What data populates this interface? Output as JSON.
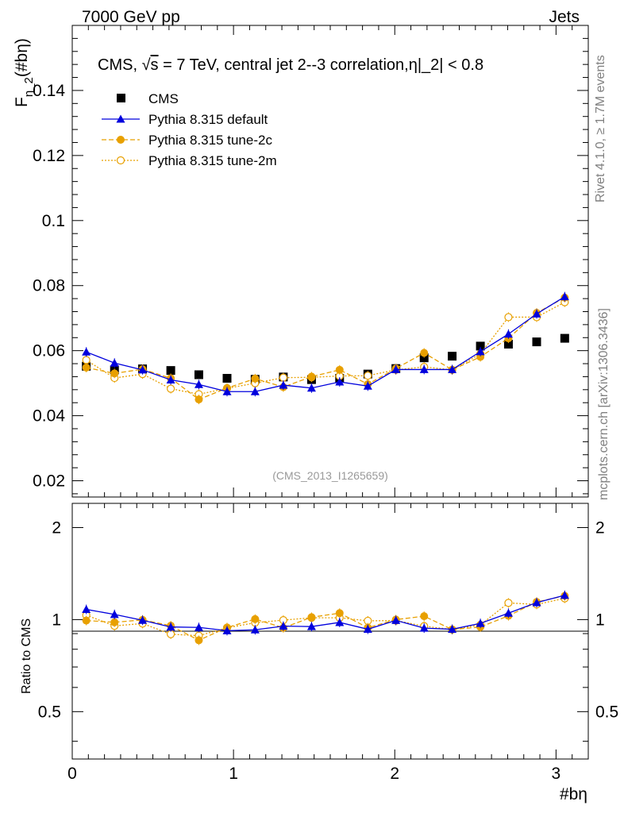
{
  "header": {
    "energy_label": "7000 GeV pp",
    "process_label": "Jets"
  },
  "side_labels": {
    "rivet": "Rivet 4.1.0, ≥ 1.7M events",
    "mcplots": "mcplots.cern.ch [arXiv:1306.3436]"
  },
  "chart_data": {
    "type": "scatter",
    "title_prefix": "CMS, ",
    "title_sqrt": "√",
    "title_s": "s",
    "title_rest": " = 7 TeV, central jet 2--3 correlation,",
    "title_eta": "η",
    "title_tail": "|_2| < 0.8",
    "ylabel_F": "F",
    "ylabel_sub": "η_2",
    "ylabel_rest": "(#bη)",
    "xlabel": "#bη",
    "ratio_ylabel": "Ratio to CMS",
    "watermark": "(CMS_2013_I1265659)",
    "xlim": [
      0,
      3.2
    ],
    "ylim": [
      0.015,
      0.16
    ],
    "ratio_ylim": [
      0.35,
      2.4
    ],
    "x_ticks": [
      "0",
      "1",
      "2",
      "3"
    ],
    "y_ticks": [
      "0.02",
      "0.04",
      "0.06",
      "0.08",
      "0.1",
      "0.12",
      "0.14"
    ],
    "ratio_ticks": [
      "0.5",
      "1",
      "2"
    ],
    "x": [
      0.087,
      0.262,
      0.436,
      0.611,
      0.785,
      0.96,
      1.134,
      1.309,
      1.484,
      1.658,
      1.833,
      2.007,
      2.182,
      2.356,
      2.531,
      2.705,
      2.88,
      3.054
    ],
    "series": [
      {
        "name": "CMS",
        "color": "#000000",
        "values": [
          0.0552,
          0.0541,
          0.0544,
          0.0539,
          0.0526,
          0.0515,
          0.0512,
          0.0519,
          0.0511,
          0.0515,
          0.0528,
          0.0545,
          0.0578,
          0.0583,
          0.0614,
          0.062,
          0.0627,
          0.0638
        ]
      },
      {
        "name": "Pythia 8.315 default",
        "color": "#0000dd",
        "values": [
          0.0596,
          0.0562,
          0.0541,
          0.051,
          0.0496,
          0.0474,
          0.0474,
          0.0494,
          0.0485,
          0.0504,
          0.0491,
          0.0542,
          0.0542,
          0.0542,
          0.0597,
          0.0651,
          0.0713,
          0.0766
        ]
      },
      {
        "name": "Pythia 8.315 tune-2c",
        "color": "#e8a000",
        "values": [
          0.0548,
          0.053,
          0.0543,
          0.0515,
          0.045,
          0.0485,
          0.0514,
          0.0488,
          0.052,
          0.0541,
          0.0497,
          0.0545,
          0.0593,
          0.0541,
          0.0581,
          0.0638,
          0.0716,
          0.0763
        ]
      },
      {
        "name": "Pythia 8.315 tune-2m",
        "color": "#e8a000",
        "values": [
          0.0571,
          0.0516,
          0.0528,
          0.0483,
          0.0466,
          0.0484,
          0.05,
          0.0517,
          0.0518,
          0.0522,
          0.0523,
          0.0541,
          0.055,
          0.0541,
          0.059,
          0.0703,
          0.0703,
          0.0749
        ]
      }
    ],
    "ratio_series": [
      {
        "name": "Pythia 8.315 default",
        "values": [
          1.08,
          1.04,
          0.995,
          0.946,
          0.943,
          0.92,
          0.926,
          0.952,
          0.949,
          0.979,
          0.93,
          0.994,
          0.938,
          0.93,
          0.972,
          1.05,
          1.137,
          1.201
        ]
      },
      {
        "name": "Pythia 8.315 tune-2c",
        "values": [
          0.993,
          0.98,
          0.998,
          0.955,
          0.856,
          0.942,
          1.004,
          0.94,
          1.018,
          1.05,
          0.941,
          1.0,
          1.026,
          0.928,
          0.946,
          1.029,
          1.142,
          1.196
        ]
      },
      {
        "name": "Pythia 8.315 tune-2m",
        "values": [
          1.034,
          0.954,
          0.971,
          0.896,
          0.886,
          0.94,
          0.977,
          0.996,
          1.014,
          1.014,
          0.991,
          0.993,
          0.952,
          0.928,
          0.961,
          1.134,
          1.121,
          1.174
        ]
      }
    ]
  }
}
